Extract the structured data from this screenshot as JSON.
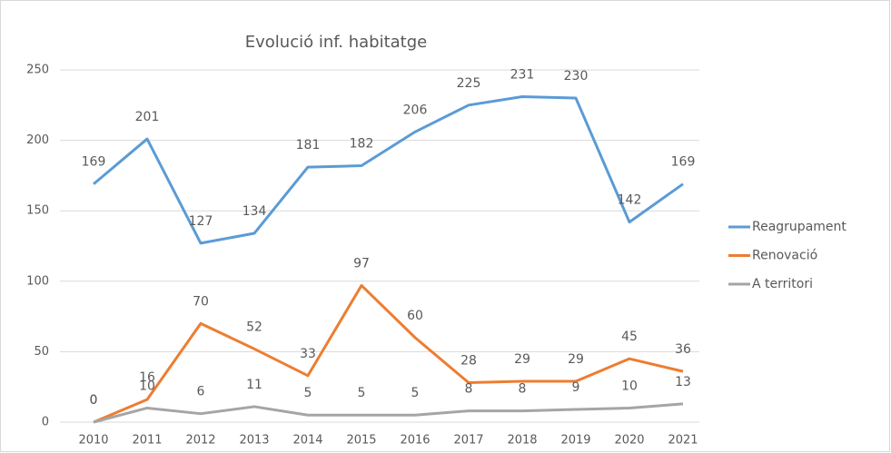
{
  "chart_data": {
    "type": "line",
    "title": "Evolució inf. habitatge",
    "categories": [
      "2010",
      "2011",
      "2012",
      "2013",
      "2014",
      "2015",
      "2016",
      "2017",
      "2018",
      "2019",
      "2020",
      "2021"
    ],
    "series": [
      {
        "name": "Reagrupament",
        "color": "#5b9bd5",
        "values": [
          169,
          201,
          127,
          134,
          181,
          182,
          206,
          225,
          231,
          230,
          142,
          169
        ]
      },
      {
        "name": "Renovació",
        "color": "#ed7d31",
        "values": [
          0,
          16,
          70,
          52,
          33,
          97,
          60,
          28,
          29,
          29,
          45,
          36
        ]
      },
      {
        "name": "A territori",
        "color": "#a5a5a5",
        "values": [
          0,
          10,
          6,
          11,
          5,
          5,
          5,
          8,
          8,
          9,
          10,
          13
        ]
      }
    ],
    "ylim": [
      0,
      250
    ],
    "yticks": [
      0,
      50,
      100,
      150,
      200,
      250
    ],
    "grid": true,
    "legend": "right"
  }
}
